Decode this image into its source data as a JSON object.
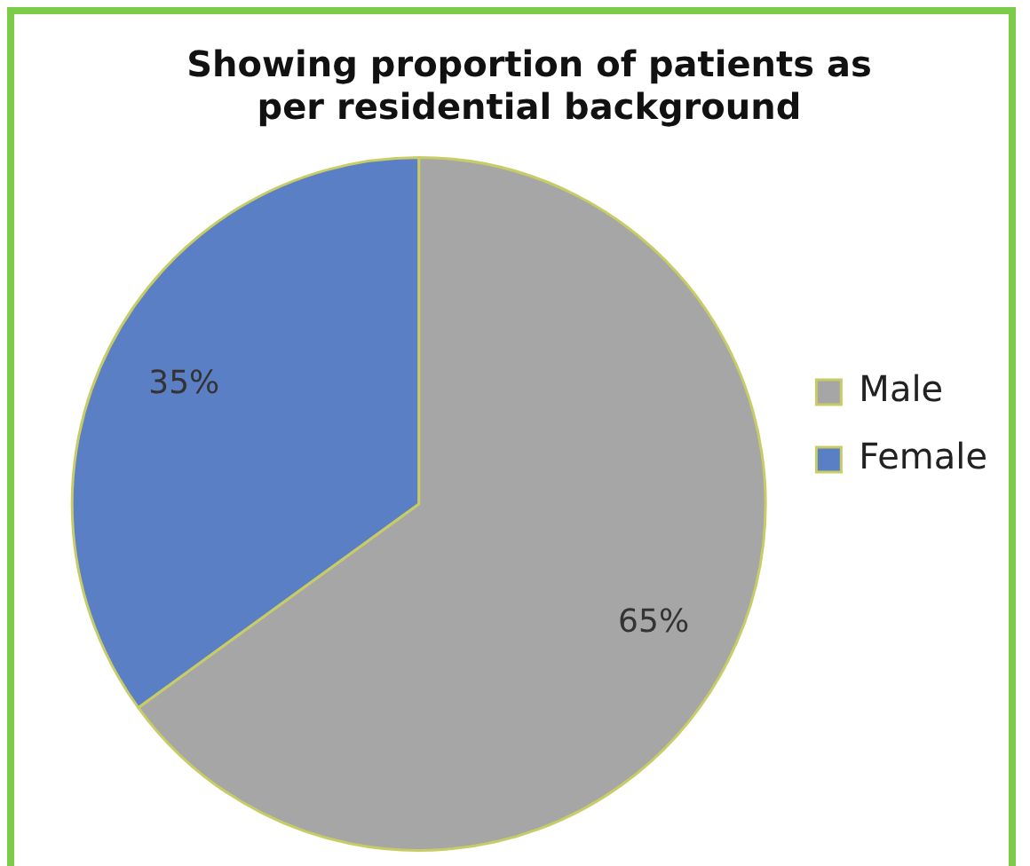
{
  "chart_data": {
    "type": "pie",
    "title": "Showing proportion of patients as per residential background",
    "categories": [
      "Male",
      "Female"
    ],
    "values": [
      65,
      35
    ],
    "value_labels": [
      "65%",
      "35%"
    ],
    "colors": [
      "#a6a6a6",
      "#5b7fc4"
    ],
    "legend": "right"
  }
}
